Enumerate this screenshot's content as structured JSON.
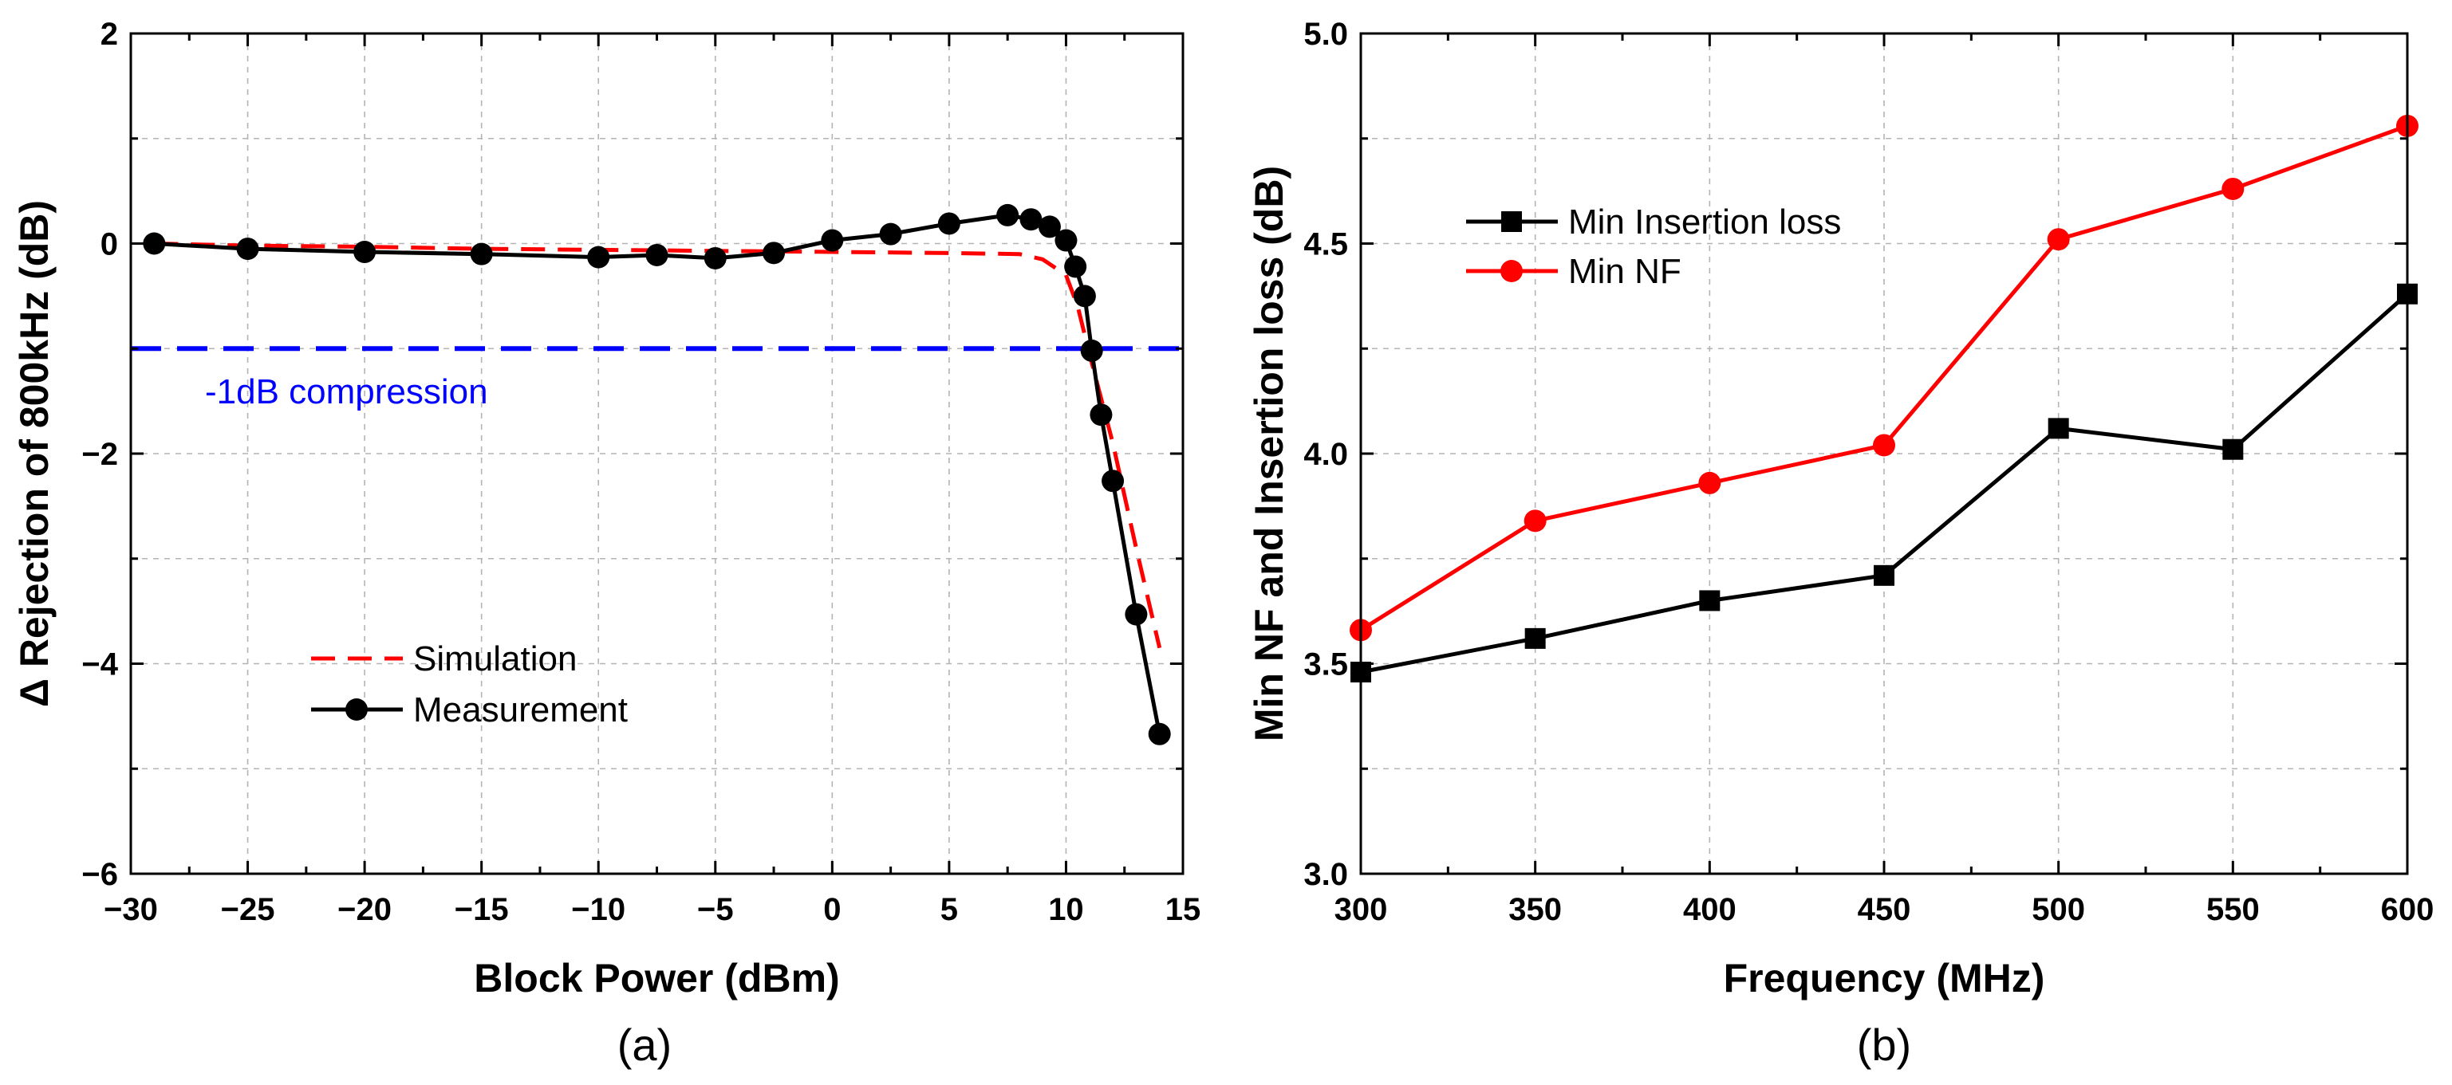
{
  "chart_data": [
    {
      "type": "line",
      "caption": "(a)",
      "xlabel": "Block Power (dBm)",
      "ylabel": "Δ Rejection of 800kHz (dB)",
      "xlim": [
        -30,
        15
      ],
      "ylim": [
        -6,
        2
      ],
      "xticks": [
        -30,
        -25,
        -20,
        -15,
        -10,
        -5,
        0,
        5,
        10,
        15
      ],
      "yticks": [
        -6,
        -4,
        -2,
        0,
        2
      ],
      "xtick_labels": [
        "−30",
        "−25",
        "−20",
        "−15",
        "−10",
        "−5",
        "0",
        "5",
        "10",
        "15"
      ],
      "ytick_labels": [
        "−6",
        "−4",
        "−2",
        "0",
        "2"
      ],
      "grid": true,
      "legend_position": "lower-left",
      "annotation": "-1dB compression",
      "reference_line": {
        "y": -1,
        "color": "#0000ff",
        "style": "dashed"
      },
      "series": [
        {
          "name": "Simulation",
          "color": "#ff0000",
          "style": "dashed",
          "marker": "none",
          "x": [
            -29,
            -25,
            -20,
            -15,
            -10,
            -5,
            0,
            5,
            8,
            9,
            10,
            10.5,
            11,
            12,
            13,
            14
          ],
          "y": [
            0,
            -0.02,
            -0.03,
            -0.05,
            -0.06,
            -0.07,
            -0.08,
            -0.09,
            -0.1,
            -0.15,
            -0.3,
            -0.6,
            -1.05,
            -1.9,
            -2.9,
            -3.85
          ]
        },
        {
          "name": "Measurement",
          "color": "#000000",
          "style": "solid",
          "marker": "circle",
          "x": [
            -29,
            -25,
            -20,
            -15,
            -10,
            -7.5,
            -5,
            -2.5,
            0,
            2.5,
            5,
            7.5,
            8.5,
            9.3,
            10,
            10.4,
            10.8,
            11.1,
            11.5,
            12,
            13,
            14
          ],
          "y": [
            0,
            -0.05,
            -0.08,
            -0.1,
            -0.13,
            -0.11,
            -0.14,
            -0.09,
            0.03,
            0.09,
            0.19,
            0.27,
            0.23,
            0.16,
            0.03,
            -0.22,
            -0.5,
            -1.02,
            -1.63,
            -2.26,
            -3.53,
            -4.67
          ]
        }
      ]
    },
    {
      "type": "line",
      "caption": "(b)",
      "xlabel": "Frequency (MHz)",
      "ylabel": "Min NF and  Insertion loss (dB)",
      "xlim": [
        300,
        600
      ],
      "ylim": [
        3.0,
        5.0
      ],
      "xticks": [
        300,
        350,
        400,
        450,
        500,
        550,
        600
      ],
      "yticks": [
        3.0,
        3.5,
        4.0,
        4.5,
        5.0
      ],
      "xtick_labels": [
        "300",
        "350",
        "400",
        "450",
        "500",
        "550",
        "600"
      ],
      "ytick_labels": [
        "3.0",
        "3.5",
        "4.0",
        "4.5",
        "5.0"
      ],
      "grid": true,
      "legend_position": "upper-left",
      "series": [
        {
          "name": "Min Insertion loss",
          "color": "#000000",
          "style": "solid",
          "marker": "square",
          "x": [
            300,
            350,
            400,
            450,
            500,
            550,
            600
          ],
          "y": [
            3.48,
            3.56,
            3.65,
            3.71,
            4.06,
            4.01,
            4.38
          ]
        },
        {
          "name": "Min NF",
          "color": "#ff0000",
          "style": "solid",
          "marker": "circle",
          "x": [
            300,
            350,
            400,
            450,
            500,
            550,
            600
          ],
          "y": [
            3.58,
            3.84,
            3.93,
            4.02,
            4.51,
            4.63,
            4.78
          ]
        }
      ]
    }
  ]
}
